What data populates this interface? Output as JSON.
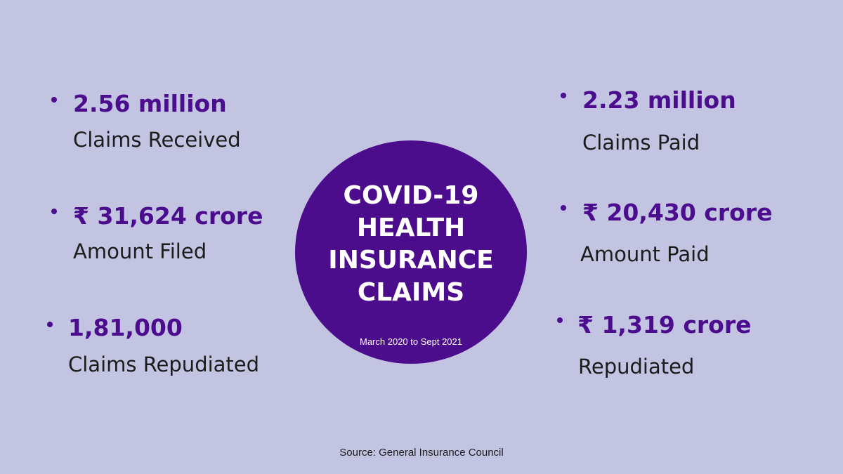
{
  "title_lines": [
    "COVID-19",
    "HEALTH",
    "INSURANCE",
    "CLAIMS"
  ],
  "subtitle": "March 2020 to Sept 2021",
  "left": [
    {
      "value": "2.56 million",
      "label": "Claims Received"
    },
    {
      "value": "₹ 31,624 crore",
      "label": "Amount Filed"
    },
    {
      "value": "1,81,000",
      "label": "Claims Repudiated"
    }
  ],
  "right": [
    {
      "value": "2.23 million",
      "label": "Claims Paid"
    },
    {
      "value": "₹ 20,430 crore",
      "label": "Amount Paid"
    },
    {
      "value": "₹ 1,319 crore",
      "label": "Repudiated"
    }
  ],
  "source": "Source: General Insurance Council",
  "colors": {
    "background": "#c3c3e2",
    "accent": "#4b0c8e",
    "text": "#1c1c1c",
    "circle_text": "#ffffff"
  }
}
